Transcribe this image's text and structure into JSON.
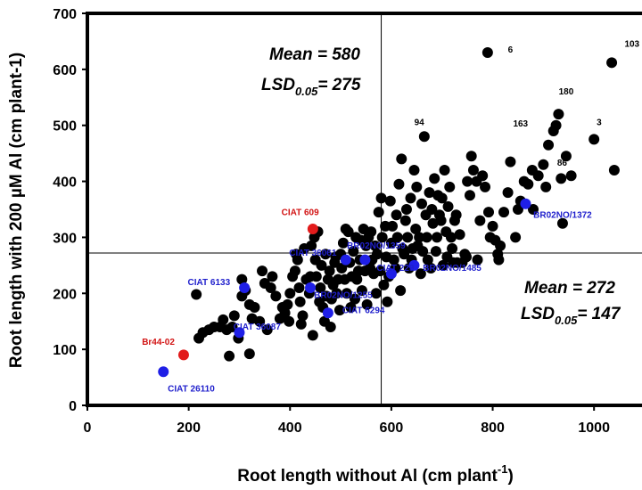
{
  "chart_data": {
    "type": "scatter",
    "title": "",
    "xlabel": "Root length without Al (cm plant",
    "xlabel_sup": "-1",
    "xlabel_close": ")",
    "ylabel": "Root length with 200 µM Al (cm plant-1)",
    "xlim": [
      0,
      1100
    ],
    "ylim": [
      0,
      700
    ],
    "xticks": [
      0,
      200,
      400,
      600,
      800,
      1000
    ],
    "yticks": [
      0,
      100,
      200,
      300,
      400,
      500,
      600,
      700
    ],
    "grid": false,
    "reference_lines": {
      "x": 580,
      "y": 272
    },
    "annotations": {
      "upper": {
        "mean_label": "Mean = 580",
        "lsd_prefix": "LSD",
        "lsd_sub": "0.05",
        "lsd_value": "= 275"
      },
      "lower": {
        "mean_label": "Mean = 272",
        "lsd_prefix": "LSD",
        "lsd_sub": "0.05",
        "lsd_value": "=  147"
      }
    },
    "colors": {
      "black": "#000000",
      "blue": "#1f1fe6",
      "red": "#e21b1b",
      "label_blue": "#1f1fcc",
      "label_red": "#d21414"
    },
    "series": [
      {
        "color": "black",
        "points": [
          [
            215,
            198
          ],
          [
            220,
            120
          ],
          [
            228,
            130
          ],
          [
            240,
            135
          ],
          [
            250,
            140
          ],
          [
            262,
            140
          ],
          [
            268,
            153
          ],
          [
            275,
            135
          ],
          [
            280,
            88
          ],
          [
            286,
            140
          ],
          [
            290,
            160
          ],
          [
            298,
            120
          ],
          [
            305,
            225
          ],
          [
            305,
            195
          ],
          [
            312,
            205
          ],
          [
            320,
            92
          ],
          [
            320,
            180
          ],
          [
            325,
            155
          ],
          [
            330,
            175
          ],
          [
            340,
            150
          ],
          [
            345,
            240
          ],
          [
            350,
            218
          ],
          [
            355,
            135
          ],
          [
            362,
            210
          ],
          [
            365,
            230
          ],
          [
            372,
            195
          ],
          [
            380,
            155
          ],
          [
            385,
            175
          ],
          [
            390,
            165
          ],
          [
            395,
            180
          ],
          [
            398,
            150
          ],
          [
            400,
            200
          ],
          [
            405,
            230
          ],
          [
            410,
            240
          ],
          [
            412,
            270
          ],
          [
            415,
            260
          ],
          [
            418,
            210
          ],
          [
            420,
            185
          ],
          [
            422,
            145
          ],
          [
            425,
            160
          ],
          [
            428,
            280
          ],
          [
            432,
            225
          ],
          [
            438,
            200
          ],
          [
            440,
            230
          ],
          [
            442,
            285
          ],
          [
            445,
            125
          ],
          [
            448,
            300
          ],
          [
            450,
            260
          ],
          [
            452,
            230
          ],
          [
            455,
            310
          ],
          [
            458,
            185
          ],
          [
            460,
            210
          ],
          [
            462,
            250
          ],
          [
            465,
            175
          ],
          [
            468,
            150
          ],
          [
            470,
            270
          ],
          [
            472,
            195
          ],
          [
            475,
            225
          ],
          [
            478,
            240
          ],
          [
            480,
            140
          ],
          [
            482,
            190
          ],
          [
            485,
            215
          ],
          [
            488,
            255
          ],
          [
            490,
            265
          ],
          [
            492,
            200
          ],
          [
            495,
            225
          ],
          [
            498,
            170
          ],
          [
            500,
            270
          ],
          [
            502,
            245
          ],
          [
            505,
            290
          ],
          [
            508,
            225
          ],
          [
            510,
            315
          ],
          [
            512,
            200
          ],
          [
            515,
            310
          ],
          [
            518,
            255
          ],
          [
            520,
            175
          ],
          [
            522,
            230
          ],
          [
            525,
            275
          ],
          [
            528,
            190
          ],
          [
            530,
            300
          ],
          [
            532,
            225
          ],
          [
            535,
            240
          ],
          [
            538,
            260
          ],
          [
            540,
            295
          ],
          [
            542,
            205
          ],
          [
            545,
            315
          ],
          [
            548,
            240
          ],
          [
            550,
            285
          ],
          [
            552,
            180
          ],
          [
            555,
            300
          ],
          [
            558,
            245
          ],
          [
            560,
            310
          ],
          [
            562,
            260
          ],
          [
            565,
            235
          ],
          [
            568,
            285
          ],
          [
            570,
            200
          ],
          [
            572,
            270
          ],
          [
            575,
            345
          ],
          [
            578,
            240
          ],
          [
            580,
            370
          ],
          [
            582,
            300
          ],
          [
            585,
            215
          ],
          [
            588,
            320
          ],
          [
            590,
            265
          ],
          [
            592,
            185
          ],
          [
            595,
            230
          ],
          [
            598,
            365
          ],
          [
            600,
            290
          ],
          [
            602,
            320
          ],
          [
            605,
            260
          ],
          [
            608,
            245
          ],
          [
            610,
            340
          ],
          [
            612,
            300
          ],
          [
            615,
            395
          ],
          [
            618,
            205
          ],
          [
            620,
            440
          ],
          [
            622,
            280
          ],
          [
            625,
            270
          ],
          [
            628,
            330
          ],
          [
            630,
            350
          ],
          [
            632,
            300
          ],
          [
            635,
            245
          ],
          [
            638,
            370
          ],
          [
            640,
            260
          ],
          [
            642,
            280
          ],
          [
            645,
            420
          ],
          [
            648,
            315
          ],
          [
            650,
            390
          ],
          [
            652,
            285
          ],
          [
            655,
            300
          ],
          [
            658,
            235
          ],
          [
            660,
            360
          ],
          [
            662,
            275
          ],
          [
            665,
            480
          ],
          [
            668,
            340
          ],
          [
            670,
            300
          ],
          [
            672,
            260
          ],
          [
            675,
            380
          ],
          [
            678,
            245
          ],
          [
            680,
            350
          ],
          [
            682,
            325
          ],
          [
            685,
            405
          ],
          [
            688,
            275
          ],
          [
            690,
            300
          ],
          [
            692,
            375
          ],
          [
            695,
            340
          ],
          [
            698,
            330
          ],
          [
            700,
            370
          ],
          [
            702,
            250
          ],
          [
            705,
            420
          ],
          [
            708,
            310
          ],
          [
            710,
            265
          ],
          [
            712,
            355
          ],
          [
            715,
            390
          ],
          [
            718,
            300
          ],
          [
            720,
            280
          ],
          [
            722,
            255
          ],
          [
            725,
            330
          ],
          [
            728,
            340
          ],
          [
            730,
            255
          ],
          [
            735,
            305
          ],
          [
            740,
            255
          ],
          [
            745,
            270
          ],
          [
            748,
            265
          ],
          [
            750,
            400
          ],
          [
            755,
            375
          ],
          [
            758,
            445
          ],
          [
            762,
            420
          ],
          [
            768,
            400
          ],
          [
            770,
            260
          ],
          [
            775,
            330
          ],
          [
            780,
            410
          ],
          [
            785,
            390
          ],
          [
            790,
            630
          ],
          [
            792,
            345
          ],
          [
            795,
            300
          ],
          [
            800,
            320
          ],
          [
            805,
            295
          ],
          [
            810,
            270
          ],
          [
            812,
            260
          ],
          [
            815,
            285
          ],
          [
            822,
            345
          ],
          [
            830,
            380
          ],
          [
            835,
            435
          ],
          [
            845,
            300
          ],
          [
            850,
            350
          ],
          [
            855,
            365
          ],
          [
            862,
            400
          ],
          [
            870,
            395
          ],
          [
            878,
            420
          ],
          [
            880,
            350
          ],
          [
            890,
            410
          ],
          [
            900,
            430
          ],
          [
            905,
            390
          ],
          [
            910,
            465
          ],
          [
            920,
            490
          ],
          [
            925,
            500
          ],
          [
            930,
            520
          ],
          [
            935,
            405
          ],
          [
            938,
            325
          ],
          [
            945,
            445
          ],
          [
            955,
            410
          ],
          [
            1000,
            475
          ],
          [
            1035,
            612
          ],
          [
            1040,
            420
          ]
        ]
      },
      {
        "color": "blue",
        "points": [
          [
            150,
            60
          ],
          [
            300,
            130
          ],
          [
            310,
            210
          ],
          [
            440,
            210
          ],
          [
            475,
            165
          ],
          [
            510,
            260
          ],
          [
            548,
            260
          ],
          [
            600,
            235
          ],
          [
            645,
            250
          ],
          [
            865,
            360
          ]
        ]
      },
      {
        "color": "red",
        "points": [
          [
            190,
            90
          ],
          [
            445,
            315
          ]
        ]
      }
    ],
    "labels": [
      {
        "text": "6",
        "x": 835,
        "y": 630,
        "color": "black"
      },
      {
        "text": "103",
        "x": 1075,
        "y": 640,
        "color": "black"
      },
      {
        "text": "180",
        "x": 945,
        "y": 555,
        "color": "black"
      },
      {
        "text": "163",
        "x": 855,
        "y": 498,
        "color": "black"
      },
      {
        "text": "3",
        "x": 1010,
        "y": 500,
        "color": "black"
      },
      {
        "text": "86",
        "x": 937,
        "y": 428,
        "color": "black"
      },
      {
        "text": "94",
        "x": 655,
        "y": 500,
        "color": "black"
      },
      {
        "text": "CIAT 609",
        "x": 420,
        "y": 340,
        "color": "red"
      },
      {
        "text": "BR02NO/1372",
        "x": 938,
        "y": 335,
        "color": "blue"
      },
      {
        "text": "BR02NO/1359",
        "x": 570,
        "y": 280,
        "color": "blue"
      },
      {
        "text": "CIAT 36061",
        "x": 445,
        "y": 267,
        "color": "blue"
      },
      {
        "text": "CIAT 6133",
        "x": 240,
        "y": 215,
        "color": "blue"
      },
      {
        "text": "CIAT 26110",
        "x": 205,
        "y": 25,
        "color": "blue"
      },
      {
        "text": "CIAT 36087",
        "x": 335,
        "y": 135,
        "color": "blue"
      },
      {
        "text": "Br44-02",
        "x": 140,
        "y": 108,
        "color": "red"
      },
      {
        "text": "BR02NO/1255",
        "x": 505,
        "y": 192,
        "color": "blue"
      },
      {
        "text": "CIAT 6294",
        "x": 545,
        "y": 165,
        "color": "blue"
      },
      {
        "text": "BR02NO/1485",
        "x": 720,
        "y": 240,
        "color": "blue"
      },
      {
        "text": "CIAT 229",
        "x": 608,
        "y": 240,
        "color": "blue"
      }
    ]
  }
}
